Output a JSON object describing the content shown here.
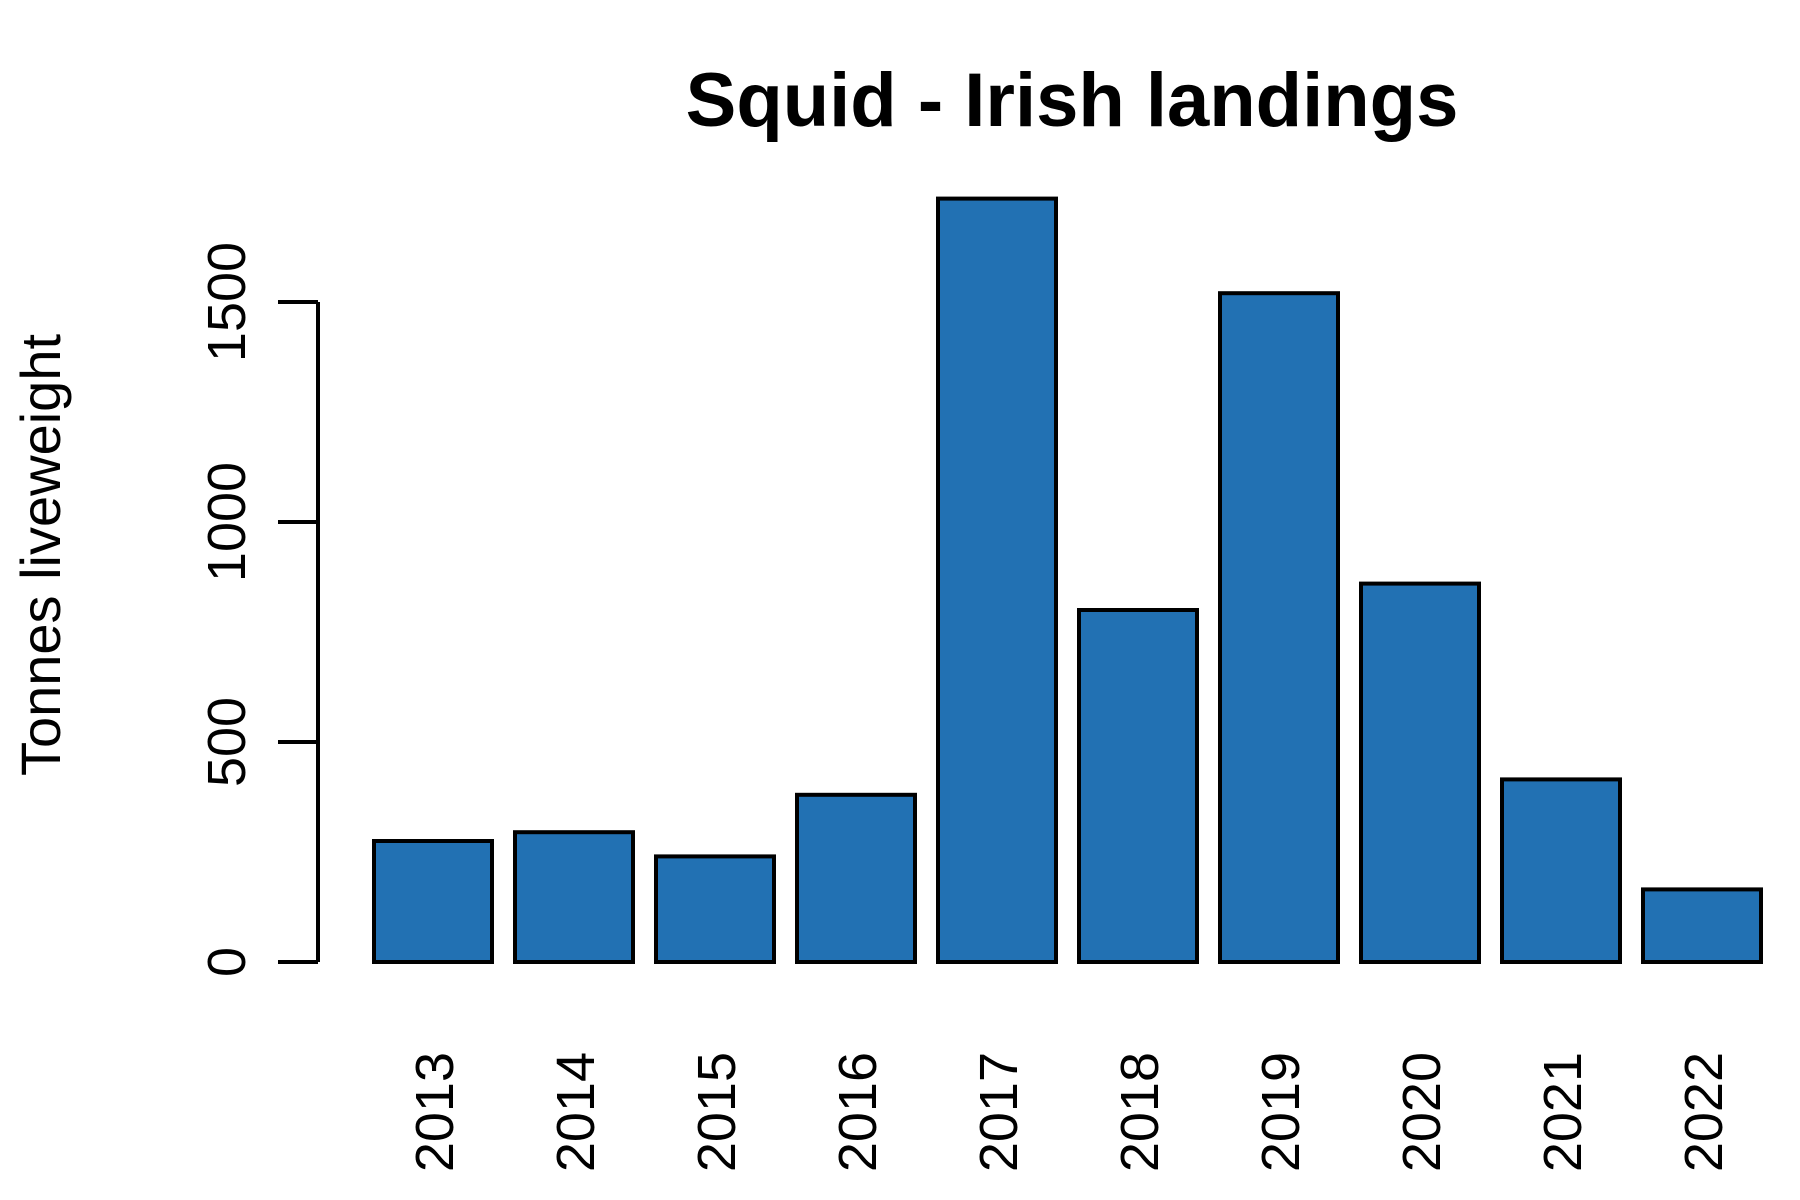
{
  "chart_data": {
    "type": "bar",
    "title": "Squid - Irish landings",
    "xlabel": "",
    "ylabel": "Tonnes liveweight",
    "categories": [
      "2013",
      "2014",
      "2015",
      "2016",
      "2017",
      "2018",
      "2019",
      "2020",
      "2021",
      "2022"
    ],
    "values": [
      275,
      295,
      240,
      380,
      1735,
      800,
      1520,
      860,
      415,
      165
    ],
    "yticks": [
      0,
      500,
      1000,
      1500
    ],
    "ylim": [
      0,
      1750
    ],
    "bar_color": "#2271B3",
    "grid": false,
    "legend": "none"
  }
}
